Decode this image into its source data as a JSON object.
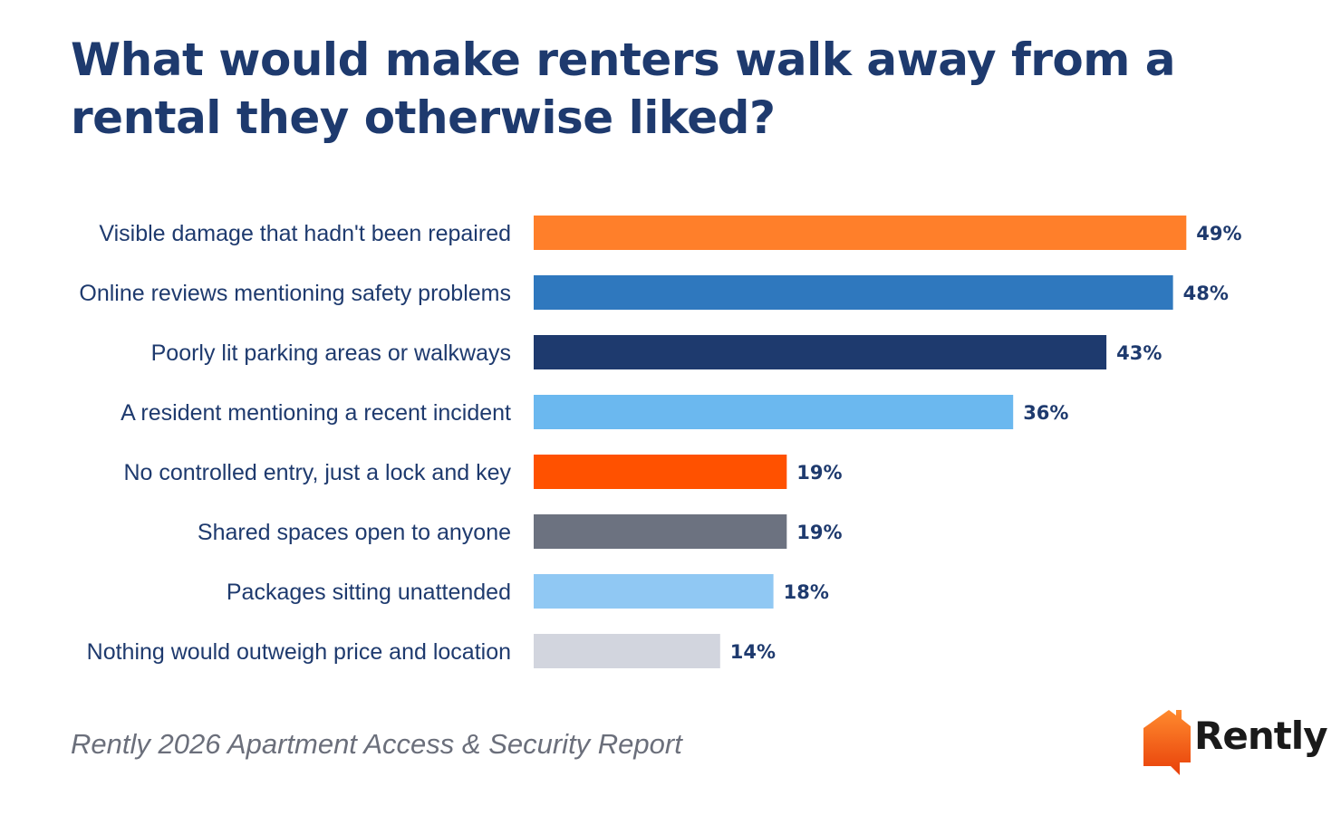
{
  "chart_data": {
    "type": "bar",
    "orientation": "horizontal",
    "title": "What would make renters walk away from a rental they otherwise liked?",
    "categories": [
      "Visible damage that hadn't been repaired",
      "Online reviews mentioning safety problems",
      "Poorly lit parking areas or walkways",
      "A resident mentioning a recent incident",
      "No controlled entry, just a lock and key",
      "Shared spaces open to anyone",
      "Packages sitting unattended",
      "Nothing would outweigh price and location"
    ],
    "values": [
      49,
      48,
      43,
      36,
      19,
      19,
      18,
      14
    ],
    "value_labels": [
      "49%",
      "48%",
      "43%",
      "36%",
      "19%",
      "19%",
      "18%",
      "14%"
    ],
    "bar_colors": [
      "#ff7f2a",
      "#2f78be",
      "#1e3a6e",
      "#6bb8ef",
      "#ff5100",
      "#6c7280",
      "#90c8f3",
      "#d2d5de"
    ],
    "unit": "%",
    "grid": false,
    "legend": "none"
  },
  "footer": {
    "source": "Rently 2026 Apartment Access & Security Report",
    "brand": "Rently"
  },
  "colors": {
    "title": "#1e3a6e",
    "labels": "#1e3a6e",
    "source": "#6b6f7b",
    "brand_orange": "#f26a21"
  },
  "icons": {
    "logo": "house-speech-bubble-icon"
  }
}
